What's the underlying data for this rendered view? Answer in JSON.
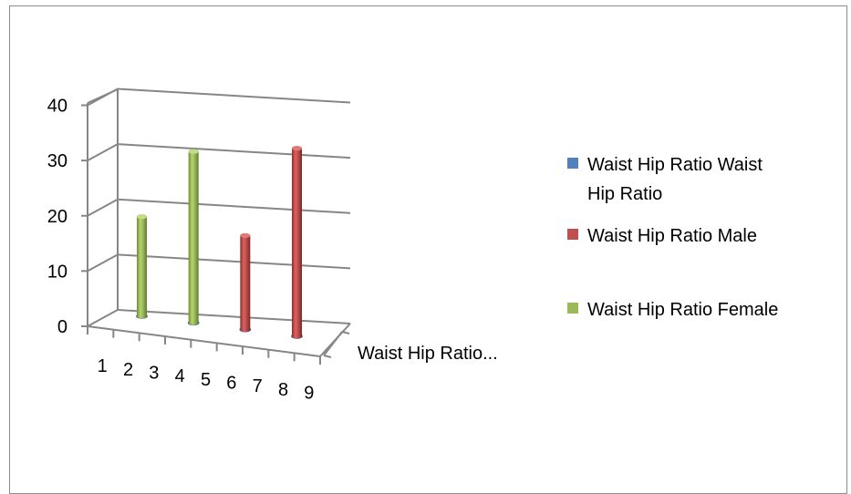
{
  "chart_data": {
    "type": "bar",
    "style": "3d-cylinder",
    "categories": [
      "1",
      "2",
      "3",
      "4",
      "5",
      "6",
      "7",
      "8",
      "9"
    ],
    "depth_axis_label": "Waist Hip Ratio...",
    "ylim": [
      0,
      40
    ],
    "yticks": [
      "0",
      "10",
      "20",
      "30",
      "40"
    ],
    "grid": true,
    "legend_position": "right",
    "series": [
      {
        "name": "Waist Hip Ratio Waist Hip Ratio",
        "color": "#4f81bd",
        "values": [
          null,
          0,
          null,
          0,
          null,
          0,
          null,
          0,
          null
        ]
      },
      {
        "name": "Waist Hip Ratio Male",
        "color": "#c0504d",
        "values": [
          null,
          null,
          null,
          null,
          null,
          17,
          null,
          34,
          null
        ]
      },
      {
        "name": "Waist Hip Ratio Female",
        "color": "#9bbb59",
        "values": [
          null,
          18,
          null,
          31,
          null,
          null,
          null,
          null,
          null
        ]
      }
    ]
  }
}
